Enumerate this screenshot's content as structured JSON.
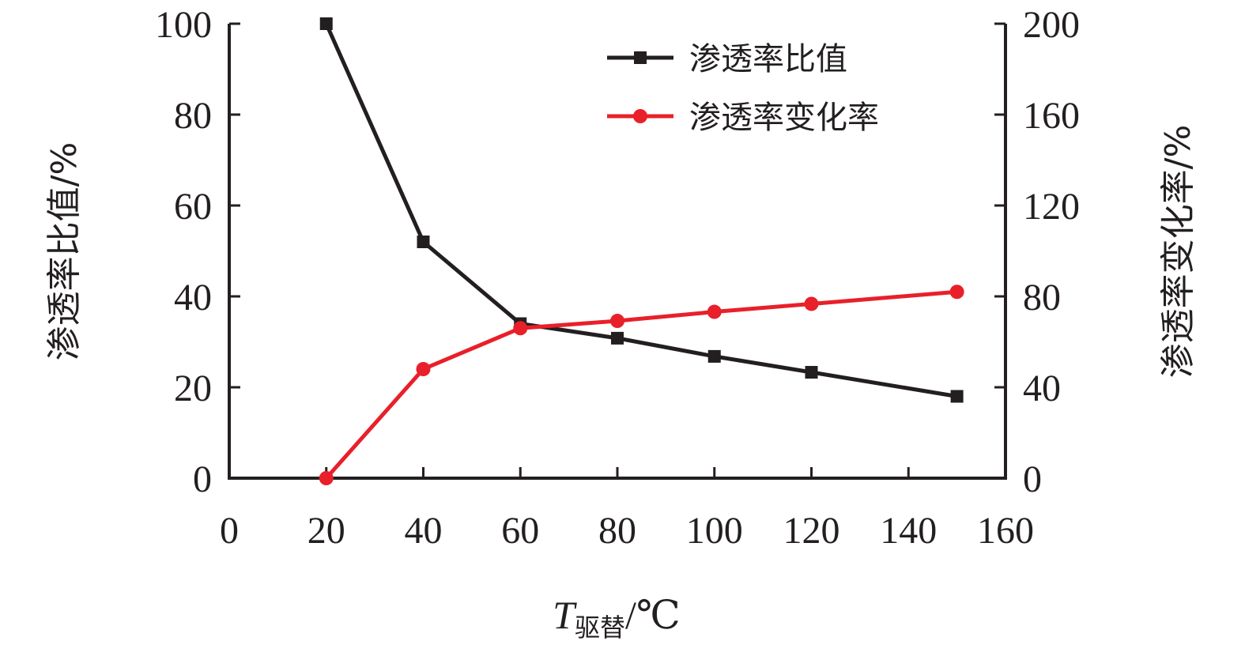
{
  "chart_data": {
    "type": "line",
    "x": [
      20,
      40,
      60,
      80,
      100,
      120,
      150
    ],
    "xlim": [
      0,
      160
    ],
    "x_ticks": [
      "0",
      "20",
      "40",
      "60",
      "80",
      "100",
      "120",
      "140",
      "160"
    ],
    "xlabel": {
      "main": "T",
      "subscript": "驱替",
      "unit": "/℃"
    },
    "y_left": {
      "label": "渗透率比值/%",
      "lim": [
        0,
        100
      ],
      "ticks": [
        "0",
        "20",
        "40",
        "60",
        "80",
        "100"
      ]
    },
    "y_right": {
      "label": "渗透率变化率/%",
      "lim": [
        0,
        200
      ],
      "ticks": [
        "0",
        "40",
        "80",
        "120",
        "160",
        "200"
      ]
    },
    "series": [
      {
        "name": "渗透率比值",
        "axis": "left",
        "color": "#231f20",
        "marker": "square",
        "values": [
          100,
          52,
          34,
          30.8,
          26.8,
          23.3,
          18
        ]
      },
      {
        "name": "渗透率变化率",
        "axis": "right",
        "color": "#e8202a",
        "marker": "circle",
        "values": [
          0,
          48,
          66,
          69.2,
          73.2,
          76.7,
          82
        ]
      }
    ],
    "legend_position": "top-right",
    "grid": false
  }
}
